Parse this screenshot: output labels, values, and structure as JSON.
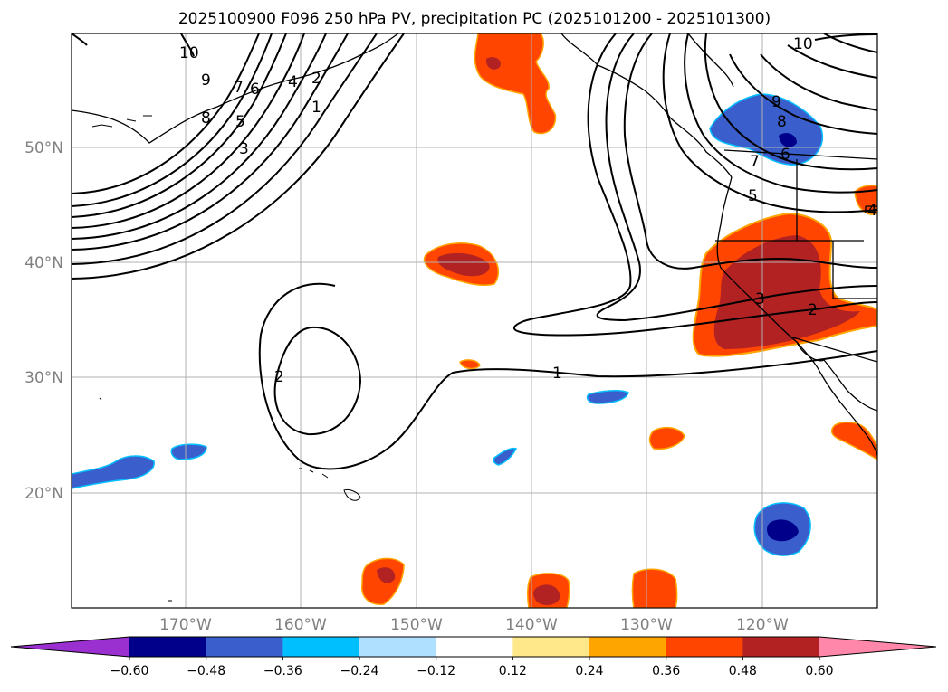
{
  "title": "2025100900 F096 250 hPa PV, precipitation PC (2025101200 - 2025101300)",
  "lat_labels": [
    "50°N",
    "40°N",
    "30°N",
    "20°N"
  ],
  "lon_labels": [
    "170°W",
    "160°W",
    "150°W",
    "140°W",
    "130°W",
    "120°W"
  ],
  "contour_labels": [
    "10",
    "9",
    "7",
    "6",
    "5",
    "4",
    "3",
    "2",
    "1",
    "8",
    "2",
    "1",
    "9",
    "8",
    "7",
    "6",
    "5",
    "3",
    "2",
    "10",
    "4"
  ],
  "colorbar": {
    "ticks": [
      "−0.60",
      "−0.48",
      "−0.36",
      "−0.24",
      "−0.12",
      "0.12",
      "0.24",
      "0.36",
      "0.48",
      "0.60"
    ],
    "colors": [
      "#9b30d0",
      "#00008b",
      "#3a5fcd",
      "#00bfff",
      "#b0e0ff",
      "#ffffff",
      "#ffe88a",
      "#ffa500",
      "#ff4500",
      "#b22222",
      "#ff88aa"
    ]
  },
  "colors": {
    "frame": "#000000",
    "grid": "#b0b0b0",
    "coast": "#000000",
    "contour": "#000000"
  }
}
